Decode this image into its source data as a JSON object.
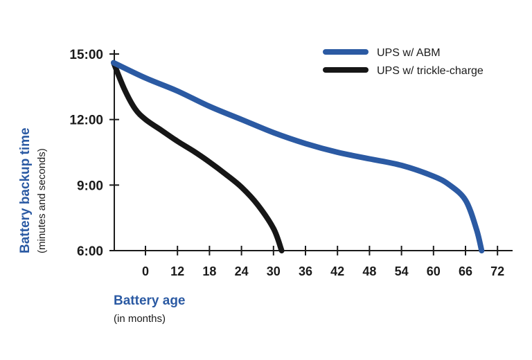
{
  "colors": {
    "abm": "#2b5aa3",
    "trickle": "#161616",
    "axis_title": "#2b5aa3",
    "axis": "#1a1a1a"
  },
  "chart_data": {
    "type": "line",
    "title": "",
    "xlabel": "Battery age",
    "xlabel_sub": "(in months)",
    "ylabel": "Battery backup time",
    "ylabel_sub": "(minutes and seconds)",
    "x_tick_labels": [
      "0",
      "12",
      "18",
      "24",
      "30",
      "36",
      "42",
      "48",
      "54",
      "60",
      "66",
      "72"
    ],
    "y_tick_labels": [
      "15:00",
      "12:00",
      "9:00",
      "6:00"
    ],
    "y_tick_values": [
      15,
      12,
      9,
      6
    ],
    "legend_position": "top-right",
    "series": [
      {
        "name": "UPS w/ ABM",
        "color": "#2b5aa3",
        "x": [
          0,
          6,
          12,
          18,
          24,
          30,
          36,
          42,
          48,
          54,
          60,
          63,
          66,
          68,
          69
        ],
        "y": [
          14.6,
          13.9,
          13.3,
          12.6,
          12.0,
          11.4,
          10.9,
          10.5,
          10.2,
          9.9,
          9.4,
          9.0,
          8.3,
          7.0,
          6.0
        ]
      },
      {
        "name": "UPS w/ trickle-charge",
        "color": "#161616",
        "x": [
          0,
          2,
          4,
          6,
          9,
          12,
          15,
          18,
          21,
          24,
          27,
          30,
          31.5
        ],
        "y": [
          14.6,
          13.4,
          12.5,
          12.0,
          11.5,
          11.0,
          10.55,
          10.05,
          9.5,
          8.9,
          8.1,
          7.0,
          6.0
        ]
      }
    ]
  }
}
